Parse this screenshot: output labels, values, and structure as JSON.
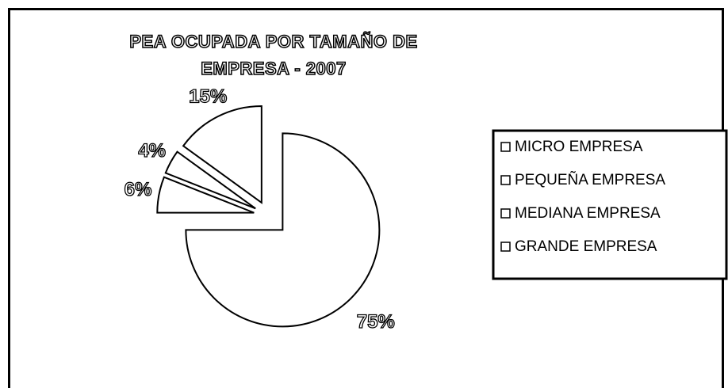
{
  "chart_data": {
    "type": "pie",
    "title": "PEA OCUPADA POR TAMAÑO DE EMPRESA - 2007",
    "categories": [
      "MICRO EMPRESA",
      "PEQUEÑA EMPRESA",
      "MEDIANA EMPRESA",
      "GRANDE EMPRESA"
    ],
    "values": [
      75,
      6,
      4,
      15
    ],
    "value_labels": [
      "75%",
      "6%",
      "4%",
      "15%"
    ],
    "color": "#ffffff",
    "legend": "right"
  }
}
